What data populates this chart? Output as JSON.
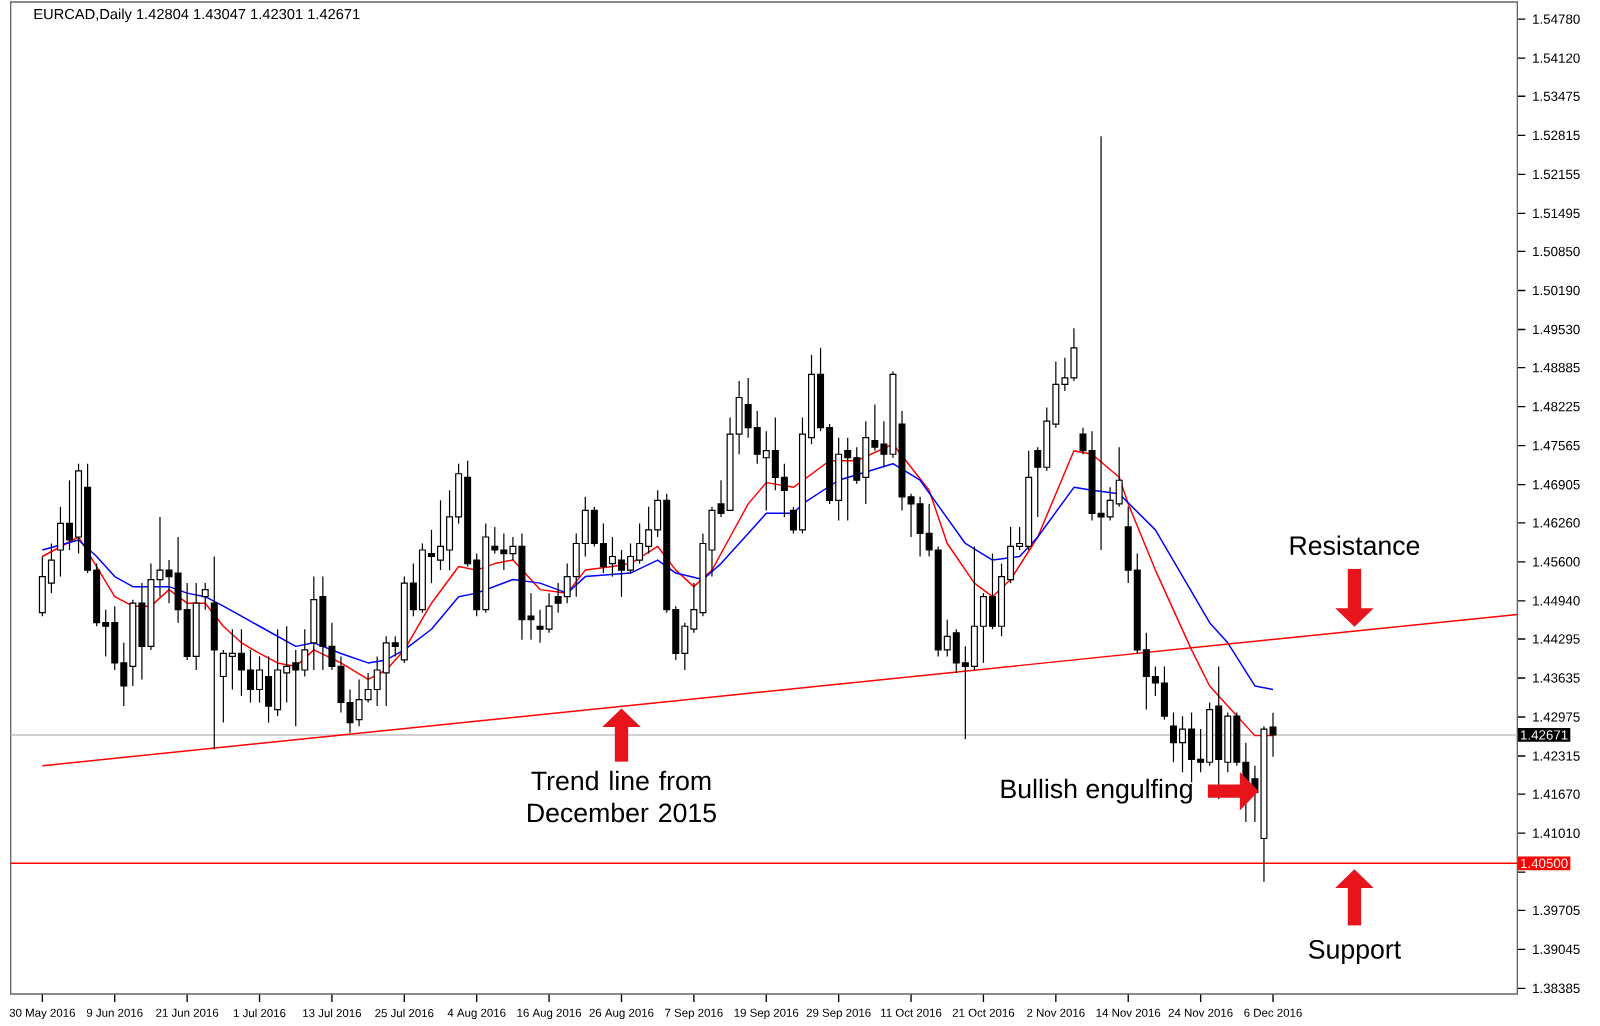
{
  "chart_data": {
    "type": "candlestick",
    "title": "EURCAD,Daily 1.42804 1.43047 1.42301 1.42671",
    "categories": [
      "30 May 2016",
      null,
      null,
      null,
      null,
      null,
      null,
      null,
      "9 Jun 2016",
      null,
      null,
      null,
      null,
      null,
      null,
      null,
      "21 Jun 2016",
      null,
      null,
      null,
      null,
      null,
      null,
      null,
      "1 Jul 2016",
      null,
      null,
      null,
      null,
      null,
      null,
      null,
      "13 Jul 2016",
      null,
      null,
      null,
      null,
      null,
      null,
      null,
      "25 Jul 2016",
      null,
      null,
      null,
      null,
      null,
      null,
      null,
      "4 Aug 2016",
      null,
      null,
      null,
      null,
      null,
      null,
      null,
      "16 Aug 2016",
      null,
      null,
      null,
      null,
      null,
      null,
      null,
      "26 Aug 2016",
      null,
      null,
      null,
      null,
      null,
      null,
      null,
      "7 Sep 2016",
      null,
      null,
      null,
      null,
      null,
      null,
      null,
      "19 Sep 2016",
      null,
      null,
      null,
      null,
      null,
      null,
      null,
      "29 Sep 2016",
      null,
      null,
      null,
      null,
      null,
      null,
      null,
      "11 Oct 2016",
      null,
      null,
      null,
      null,
      null,
      null,
      null,
      "21 Oct 2016",
      null,
      null,
      null,
      null,
      null,
      null,
      null,
      "2 Nov 2016",
      null,
      null,
      null,
      null,
      null,
      null,
      null,
      "14 Nov 2016",
      null,
      null,
      null,
      null,
      null,
      null,
      null,
      "24 Nov 2016",
      null,
      null,
      null,
      null,
      null,
      null,
      null,
      "6 Dec 2016",
      null,
      null,
      null,
      null,
      null,
      null,
      null,
      null,
      null,
      null,
      null,
      null,
      null,
      null,
      null,
      null,
      null,
      null,
      null,
      null,
      null,
      null,
      null,
      null,
      null,
      null,
      null
    ],
    "ohlc": [
      [
        1.4474,
        1.4569,
        1.4468,
        1.4535
      ],
      [
        1.4524,
        1.4591,
        1.4507,
        1.4563
      ],
      [
        1.458,
        1.4653,
        1.4535,
        1.4625
      ],
      [
        1.4625,
        1.4698,
        1.458,
        1.4597
      ],
      [
        1.4602,
        1.4726,
        1.4574,
        1.4714
      ],
      [
        1.4686,
        1.4726,
        1.4541,
        1.4546
      ],
      [
        1.4546,
        1.4557,
        1.4451,
        1.4457
      ],
      [
        1.4457,
        1.4479,
        1.44,
        1.4451
      ],
      [
        1.4457,
        1.4485,
        1.4377,
        1.4389
      ],
      [
        1.4389,
        1.4423,
        1.4316,
        1.435
      ],
      [
        1.4383,
        1.4496,
        1.435,
        1.449
      ],
      [
        1.449,
        1.4524,
        1.4361,
        1.4417
      ],
      [
        1.4417,
        1.4557,
        1.4411,
        1.453
      ],
      [
        1.453,
        1.4636,
        1.4501,
        1.4546
      ],
      [
        1.4546,
        1.4563,
        1.449,
        1.4535
      ],
      [
        1.4541,
        1.4602,
        1.4457,
        1.4479
      ],
      [
        1.4479,
        1.4524,
        1.4394,
        1.44
      ],
      [
        1.44,
        1.4524,
        1.4377,
        1.449
      ],
      [
        1.4501,
        1.4524,
        1.4479,
        1.4513
      ],
      [
        1.449,
        1.4569,
        1.4243,
        1.4411
      ],
      [
        1.4366,
        1.4411,
        1.4288,
        1.4405
      ],
      [
        1.44,
        1.4446,
        1.4344,
        1.4405
      ],
      [
        1.4405,
        1.4446,
        1.4333,
        1.4377
      ],
      [
        1.4377,
        1.4411,
        1.4322,
        1.4344
      ],
      [
        1.4344,
        1.44,
        1.4322,
        1.4377
      ],
      [
        1.4366,
        1.44,
        1.4288,
        1.4316
      ],
      [
        1.431,
        1.4446,
        1.4299,
        1.4377
      ],
      [
        1.4372,
        1.4451,
        1.4322,
        1.4383
      ],
      [
        1.4389,
        1.4411,
        1.4282,
        1.4377
      ],
      [
        1.4377,
        1.4446,
        1.4366,
        1.4411
      ],
      [
        1.4423,
        1.4535,
        1.4377,
        1.4496
      ],
      [
        1.4501,
        1.4535,
        1.4377,
        1.4417
      ],
      [
        1.4417,
        1.4457,
        1.4377,
        1.4383
      ],
      [
        1.4383,
        1.44,
        1.4305,
        1.4322
      ],
      [
        1.4322,
        1.4344,
        1.4271,
        1.4288
      ],
      [
        1.4293,
        1.4361,
        1.4282,
        1.4327
      ],
      [
        1.4327,
        1.4372,
        1.4322,
        1.4344
      ],
      [
        1.4344,
        1.44,
        1.4316,
        1.4377
      ],
      [
        1.4372,
        1.4434,
        1.4316,
        1.4423
      ],
      [
        1.4423,
        1.4434,
        1.44,
        1.4417
      ],
      [
        1.4394,
        1.4535,
        1.4389,
        1.4524
      ],
      [
        1.4524,
        1.4557,
        1.4468,
        1.4479
      ],
      [
        1.4479,
        1.4591,
        1.4474,
        1.458
      ],
      [
        1.4574,
        1.4614,
        1.4524,
        1.4569
      ],
      [
        1.4563,
        1.4664,
        1.4546,
        1.4586
      ],
      [
        1.458,
        1.4681,
        1.4546,
        1.4636
      ],
      [
        1.4636,
        1.4726,
        1.4625,
        1.4709
      ],
      [
        1.4703,
        1.4731,
        1.4552,
        1.4557
      ],
      [
        1.4563,
        1.4574,
        1.4468,
        1.4479
      ],
      [
        1.4479,
        1.4625,
        1.4474,
        1.4602
      ],
      [
        1.4586,
        1.4619,
        1.4574,
        1.458
      ],
      [
        1.458,
        1.4608,
        1.4546,
        1.4574
      ],
      [
        1.4574,
        1.4602,
        1.4563,
        1.4586
      ],
      [
        1.4586,
        1.4608,
        1.4428,
        1.4462
      ],
      [
        1.4468,
        1.4507,
        1.4428,
        1.4462
      ],
      [
        1.4451,
        1.4479,
        1.4423,
        1.4446
      ],
      [
        1.4446,
        1.4507,
        1.444,
        1.4485
      ],
      [
        1.4501,
        1.4524,
        1.4474,
        1.449
      ],
      [
        1.4501,
        1.4557,
        1.449,
        1.4535
      ],
      [
        1.4535,
        1.4608,
        1.4501,
        1.4591
      ],
      [
        1.4591,
        1.467,
        1.4569,
        1.4647
      ],
      [
        1.4647,
        1.4653,
        1.4586,
        1.4591
      ],
      [
        1.4591,
        1.4625,
        1.4541,
        1.4552
      ],
      [
        1.4557,
        1.4602,
        1.4535,
        1.4569
      ],
      [
        1.4563,
        1.458,
        1.4501,
        1.4546
      ],
      [
        1.4546,
        1.4591,
        1.4541,
        1.4569
      ],
      [
        1.4563,
        1.4625,
        1.4557,
        1.4591
      ],
      [
        1.4586,
        1.4653,
        1.4574,
        1.4614
      ],
      [
        1.4614,
        1.4681,
        1.4602,
        1.4664
      ],
      [
        1.4664,
        1.4675,
        1.4474,
        1.4479
      ],
      [
        1.4479,
        1.4485,
        1.4394,
        1.4405
      ],
      [
        1.4405,
        1.4457,
        1.4377,
        1.4451
      ],
      [
        1.4446,
        1.4524,
        1.444,
        1.4479
      ],
      [
        1.4474,
        1.4608,
        1.4468,
        1.4591
      ],
      [
        1.458,
        1.4653,
        1.4535,
        1.4647
      ],
      [
        1.4658,
        1.4698,
        1.4636,
        1.4642
      ],
      [
        1.4647,
        1.4804,
        1.4647,
        1.4776
      ],
      [
        1.4776,
        1.4866,
        1.4742,
        1.4838
      ],
      [
        1.4826,
        1.4871,
        1.477,
        1.4787
      ],
      [
        1.4787,
        1.4815,
        1.4726,
        1.4742
      ],
      [
        1.4736,
        1.4781,
        1.4647,
        1.4748
      ],
      [
        1.4748,
        1.4804,
        1.4681,
        1.4703
      ],
      [
        1.4703,
        1.4726,
        1.4636,
        1.4681
      ],
      [
        1.4647,
        1.4653,
        1.4608,
        1.4614
      ],
      [
        1.4614,
        1.4804,
        1.4608,
        1.4776
      ],
      [
        1.477,
        1.491,
        1.4759,
        1.4877
      ],
      [
        1.4877,
        1.4922,
        1.4781,
        1.4787
      ],
      [
        1.4787,
        1.4793,
        1.4658,
        1.4664
      ],
      [
        1.4664,
        1.477,
        1.463,
        1.4742
      ],
      [
        1.4748,
        1.477,
        1.463,
        1.4736
      ],
      [
        1.4736,
        1.4754,
        1.4692,
        1.4698
      ],
      [
        1.4703,
        1.4798,
        1.4658,
        1.477
      ],
      [
        1.4765,
        1.4826,
        1.4748,
        1.4754
      ],
      [
        1.4759,
        1.4798,
        1.472,
        1.4742
      ],
      [
        1.4742,
        1.4882,
        1.4736,
        1.4877
      ],
      [
        1.4793,
        1.4815,
        1.4647,
        1.467
      ],
      [
        1.467,
        1.4675,
        1.4602,
        1.4658
      ],
      [
        1.4658,
        1.467,
        1.4569,
        1.4608
      ],
      [
        1.4608,
        1.4658,
        1.4569,
        1.458
      ],
      [
        1.458,
        1.4586,
        1.44,
        1.4411
      ],
      [
        1.4411,
        1.4462,
        1.44,
        1.4434
      ],
      [
        1.444,
        1.4446,
        1.4372,
        1.4389
      ],
      [
        1.4389,
        1.4417,
        1.426,
        1.4383
      ],
      [
        1.4383,
        1.4586,
        1.4377,
        1.4451
      ],
      [
        1.4451,
        1.4507,
        1.4389,
        1.4501
      ],
      [
        1.4501,
        1.4574,
        1.4446,
        1.4451
      ],
      [
        1.4451,
        1.4557,
        1.4434,
        1.4535
      ],
      [
        1.453,
        1.4619,
        1.4524,
        1.4586
      ],
      [
        1.4586,
        1.4619,
        1.458,
        1.4591
      ],
      [
        1.4586,
        1.4748,
        1.458,
        1.4703
      ],
      [
        1.4748,
        1.4754,
        1.4636,
        1.472
      ],
      [
        1.472,
        1.4821,
        1.4714,
        1.4798
      ],
      [
        1.4793,
        1.4899,
        1.4787,
        1.486
      ],
      [
        1.486,
        1.4905,
        1.4849,
        1.4871
      ],
      [
        1.4871,
        1.4955,
        1.4866,
        1.4922
      ],
      [
        1.4776,
        1.4787,
        1.4742,
        1.4748
      ],
      [
        1.4748,
        1.4781,
        1.463,
        1.4642
      ],
      [
        1.4642,
        1.528,
        1.458,
        1.4636
      ],
      [
        1.4636,
        1.4686,
        1.463,
        1.4664
      ],
      [
        1.4658,
        1.4754,
        1.4653,
        1.4698
      ],
      [
        1.4619,
        1.4653,
        1.4524,
        1.4546
      ],
      [
        1.4546,
        1.4574,
        1.4405,
        1.4411
      ],
      [
        1.4411,
        1.444,
        1.431,
        1.4366
      ],
      [
        1.4366,
        1.4383,
        1.4333,
        1.4355
      ],
      [
        1.4355,
        1.4383,
        1.4293,
        1.4299
      ],
      [
        1.4282,
        1.4305,
        1.4221,
        1.4254
      ],
      [
        1.4254,
        1.4299,
        1.4204,
        1.4277
      ],
      [
        1.4277,
        1.4305,
        1.4187,
        1.4226
      ],
      [
        1.4226,
        1.4277,
        1.4204,
        1.4221
      ],
      [
        1.4221,
        1.4322,
        1.4215,
        1.431
      ],
      [
        1.4316,
        1.4383,
        1.4159,
        1.4226
      ],
      [
        1.4221,
        1.4305,
        1.4204,
        1.4299
      ],
      [
        1.4299,
        1.4305,
        1.4215,
        1.4221
      ],
      [
        1.4221,
        1.4254,
        1.412,
        1.4187
      ],
      [
        1.4193,
        1.4215,
        1.412,
        1.417
      ],
      [
        1.4092,
        1.4282,
        1.4019,
        1.4277
      ],
      [
        1.42804,
        1.43047,
        1.42301,
        1.42671
      ],
      null,
      null,
      null,
      null,
      null,
      null,
      null,
      null,
      null,
      null,
      null,
      null,
      null,
      null,
      null,
      null,
      null,
      null,
      null,
      null,
      null,
      null,
      null,
      null,
      null,
      null,
      null
    ],
    "series": [
      {
        "type": "line",
        "color": "#ff0000",
        "values": [
          1.4569,
          null,
          null,
          null,
          1.4602,
          null,
          null,
          null,
          1.4501,
          null,
          1.4485,
          null,
          1.4485,
          null,
          1.4513,
          null,
          1.449,
          null,
          1.449,
          null,
          1.4451,
          null,
          1.4423,
          null,
          1.4405,
          null,
          1.4389,
          null,
          1.4383,
          null,
          1.4411,
          null,
          null,
          1.4389,
          null,
          null,
          1.4361,
          null,
          1.4377,
          null,
          1.4411,
          null,
          null,
          1.449,
          null,
          null,
          1.4552,
          null,
          1.4546,
          null,
          1.4557,
          null,
          1.4563,
          null,
          null,
          1.4513,
          null,
          null,
          1.4507,
          null,
          1.4546,
          null,
          null,
          1.4552,
          null,
          1.4557,
          null,
          null,
          1.4586,
          null,
          1.4546,
          null,
          1.4518,
          null,
          1.4546,
          null,
          1.4602,
          null,
          1.4658,
          null,
          1.4694,
          null,
          null,
          1.4686,
          null,
          null,
          null,
          1.4731,
          null,
          null,
          1.4731,
          null,
          null,
          null,
          1.4759,
          null,
          null,
          null,
          1.4681,
          null,
          1.4591,
          null,
          null,
          1.4524,
          null,
          1.4501,
          null,
          1.453,
          null,
          null,
          1.4602,
          null,
          null,
          null,
          1.4748,
          null,
          1.4742,
          null,
          null,
          1.4703,
          1.4658,
          null,
          null,
          1.4546,
          null,
          null,
          null,
          1.4411,
          null,
          1.435,
          null,
          1.4316,
          null,
          null,
          1.4266,
          null,
          1.4266,
          null,
          null,
          null,
          null,
          null,
          null,
          null,
          null,
          null,
          null,
          null,
          null,
          null,
          null,
          null,
          null,
          null,
          null,
          null,
          null,
          null,
          null,
          null,
          null,
          null,
          null,
          null
        ]
      },
      {
        "type": "line",
        "color": "#0000ff",
        "values": [
          1.458,
          null,
          null,
          null,
          1.4597,
          null,
          1.4569,
          null,
          1.4535,
          null,
          1.4518,
          null,
          null,
          null,
          1.4518,
          null,
          1.4507,
          null,
          1.4501,
          null,
          1.4485,
          null,
          1.4468,
          null,
          1.4451,
          null,
          1.4434,
          null,
          1.4417,
          null,
          1.4423,
          null,
          null,
          1.4405,
          null,
          null,
          1.4389,
          null,
          1.4394,
          null,
          1.4411,
          null,
          null,
          1.4446,
          null,
          null,
          1.4501,
          null,
          1.4507,
          null,
          null,
          null,
          1.453,
          null,
          null,
          1.4524,
          null,
          null,
          1.4507,
          null,
          1.4535,
          null,
          null,
          null,
          null,
          1.4541,
          null,
          null,
          1.4563,
          null,
          1.4541,
          null,
          null,
          1.453,
          null,
          1.4557,
          null,
          null,
          1.4608,
          null,
          1.4642,
          null,
          null,
          1.4642,
          1.4658,
          null,
          null,
          null,
          1.4698,
          null,
          null,
          null,
          null,
          null,
          1.4726,
          null,
          null,
          1.4698,
          null,
          null,
          null,
          null,
          1.4591,
          null,
          null,
          1.4563,
          null,
          null,
          1.4569,
          null,
          1.4602,
          null,
          null,
          null,
          1.4686,
          null,
          1.4681,
          null,
          null,
          1.4675,
          null,
          null,
          null,
          1.4614,
          null,
          null,
          null,
          null,
          null,
          1.4457,
          null,
          1.4423,
          null,
          null,
          1.435,
          null,
          1.4344,
          null,
          null,
          null,
          null,
          null,
          null,
          null,
          null,
          null,
          null,
          null,
          null,
          null,
          null,
          null,
          null,
          null,
          null,
          null,
          null,
          null,
          null,
          null,
          null,
          null,
          null,
          null
        ]
      },
      {
        "type": "line",
        "color": "#ff0000",
        "values": [
          1.4215,
          null,
          null,
          null,
          null,
          null,
          null,
          null,
          null,
          null,
          null,
          null,
          null,
          null,
          null,
          null,
          null,
          null,
          null,
          null,
          null,
          null,
          null,
          null,
          null,
          null,
          null,
          null,
          null,
          null,
          null,
          null,
          null,
          null,
          null,
          null,
          null,
          null,
          null,
          null,
          null,
          null,
          null,
          null,
          null,
          null,
          null,
          null,
          null,
          null,
          null,
          null,
          null,
          null,
          null,
          null,
          null,
          null,
          null,
          null,
          null,
          null,
          null,
          null,
          null,
          null,
          null,
          null,
          null,
          null,
          null,
          null,
          null,
          null,
          null,
          null,
          null,
          null,
          null,
          null,
          null,
          null,
          null,
          null,
          null,
          null,
          null,
          null,
          null,
          null,
          null,
          null,
          null,
          null,
          null,
          null,
          null,
          null,
          null,
          null,
          null,
          null,
          null,
          null,
          null,
          null,
          null,
          null,
          null,
          null,
          null,
          null,
          null,
          null,
          null,
          null,
          null,
          null,
          null,
          null,
          null,
          null,
          null,
          null,
          null,
          null,
          null,
          null,
          null,
          null,
          null,
          null,
          null,
          null,
          null,
          null,
          null,
          null,
          null,
          null,
          null,
          null,
          null,
          null,
          null,
          null,
          null,
          null,
          null,
          null,
          null,
          null,
          null,
          null,
          null,
          null,
          null,
          null,
          null,
          null,
          null,
          null,
          null,
          1.4471
        ]
      }
    ],
    "ylim": [
      1.3829,
      1.5507
    ],
    "yticks": [
      {
        "value": 1.5478,
        "label": "1.54780"
      },
      {
        "value": 1.5412,
        "label": "1.54120"
      },
      {
        "value": 1.53475,
        "label": "1.53475"
      },
      {
        "value": 1.52815,
        "label": "1.52815"
      },
      {
        "value": 1.52155,
        "label": "1.52155"
      },
      {
        "value": 1.51495,
        "label": "1.51495"
      },
      {
        "value": 1.5085,
        "label": "1.50850"
      },
      {
        "value": 1.5019,
        "label": "1.50190"
      },
      {
        "value": 1.4953,
        "label": "1.49530"
      },
      {
        "value": 1.48885,
        "label": "1.48885"
      },
      {
        "value": 1.48225,
        "label": "1.48225"
      },
      {
        "value": 1.47565,
        "label": "1.47565"
      },
      {
        "value": 1.46905,
        "label": "1.46905"
      },
      {
        "value": 1.4626,
        "label": "1.46260"
      },
      {
        "value": 1.456,
        "label": "1.45600"
      },
      {
        "value": 1.4494,
        "label": "1.44940"
      },
      {
        "value": 1.44295,
        "label": "1.44295"
      },
      {
        "value": 1.43635,
        "label": "1.43635"
      },
      {
        "value": 1.42975,
        "label": "1.42975"
      },
      {
        "value": 1.42315,
        "label": "1.42315"
      },
      {
        "value": 1.4167,
        "label": "1.41670"
      },
      {
        "value": 1.4101,
        "label": "1.41010"
      },
      {
        "value": 1.4035,
        "label": null
      },
      {
        "value": 1.39705,
        "label": "1.39705"
      },
      {
        "value": 1.39045,
        "label": "1.39045"
      },
      {
        "value": 1.38385,
        "label": "1.38385"
      }
    ],
    "ref_lines": [
      {
        "axis": "y",
        "value": 1.42671,
        "label": "1.42671",
        "color": "#c0c0c0"
      },
      {
        "axis": "y",
        "value": 1.405,
        "label": "1.40500",
        "color": "#ff0000"
      }
    ],
    "annotations": [
      "Resistance",
      "Trend line from December 2015",
      "Bullish engulfing",
      "Support"
    ]
  }
}
